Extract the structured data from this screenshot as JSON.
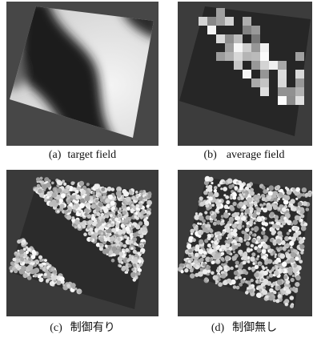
{
  "panels": [
    {
      "label": "(a)",
      "caption": "target field"
    },
    {
      "label": "(b)",
      "caption": "average field"
    },
    {
      "label": "(c)",
      "caption": "制御有り"
    },
    {
      "label": "(d)",
      "caption": "制御無し"
    }
  ]
}
